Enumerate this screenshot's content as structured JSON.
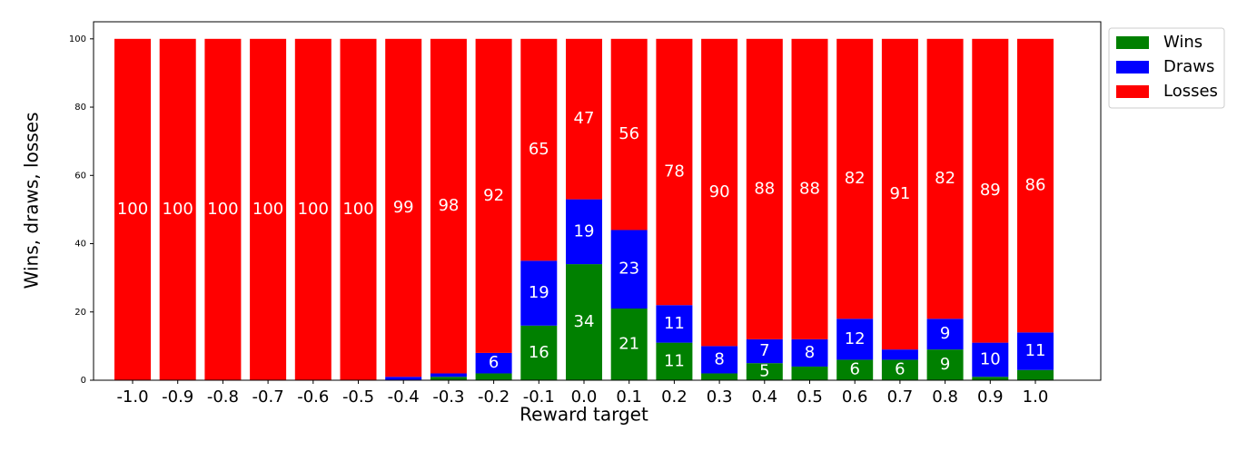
{
  "chart_data": {
    "type": "stacked-bar",
    "xlabel": "Reward target",
    "ylabel": "Wins, draws, losses",
    "categories": [
      "-1.0",
      "-0.9",
      "-0.8",
      "-0.7",
      "-0.6",
      "-0.5",
      "-0.4",
      "-0.3",
      "-0.2",
      "-0.1",
      "0.0",
      "0.1",
      "0.2",
      "0.3",
      "0.4",
      "0.5",
      "0.6",
      "0.7",
      "0.8",
      "0.9",
      "1.0"
    ],
    "series": [
      {
        "name": "Wins",
        "color": "#008000",
        "values": [
          0,
          0,
          0,
          0,
          0,
          0,
          0,
          1,
          2,
          16,
          34,
          21,
          11,
          2,
          5,
          4,
          6,
          6,
          9,
          1,
          3
        ]
      },
      {
        "name": "Draws",
        "color": "#0000ff",
        "values": [
          0,
          0,
          0,
          0,
          0,
          0,
          1,
          1,
          6,
          19,
          19,
          23,
          11,
          8,
          7,
          8,
          12,
          3,
          9,
          10,
          11
        ]
      },
      {
        "name": "Losses",
        "color": "#ff0000",
        "values": [
          100,
          100,
          100,
          100,
          100,
          100,
          99,
          98,
          92,
          65,
          47,
          56,
          78,
          90,
          88,
          88,
          82,
          91,
          82,
          89,
          86
        ]
      }
    ],
    "ylim": [
      0,
      105
    ],
    "yticks": [
      0,
      20,
      40,
      60,
      80,
      100
    ],
    "legend": "outside-upper-right"
  }
}
